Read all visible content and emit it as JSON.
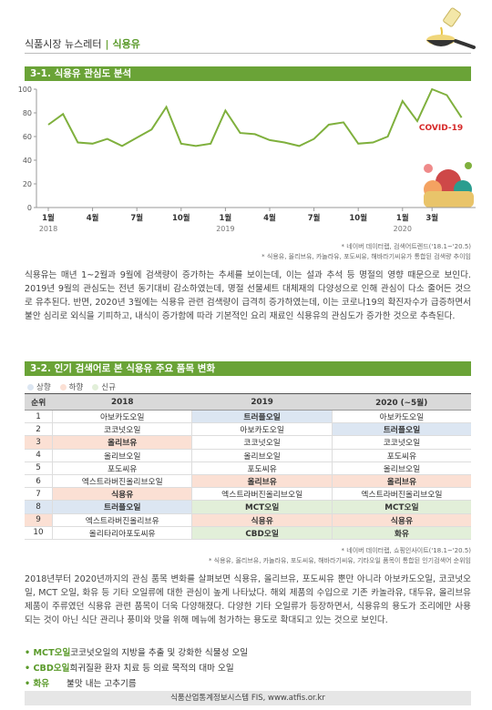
{
  "header": {
    "newsletter": "식품시장 뉴스레터",
    "separator": "|",
    "topic": "식용유"
  },
  "section1": {
    "title": "3-1. 식용유 관심도 분석",
    "chart_data": {
      "type": "line",
      "categories": [
        "1월",
        null,
        null,
        "4월",
        null,
        null,
        "7월",
        null,
        null,
        "10월",
        null,
        null,
        "1월",
        null,
        null,
        "4월",
        null,
        null,
        "7월",
        null,
        null,
        "10월",
        null,
        null,
        "1월",
        null,
        "3월",
        null,
        null
      ],
      "year_labels": [
        "2018",
        null,
        null,
        null,
        null,
        null,
        null,
        null,
        null,
        null,
        null,
        null,
        "2019",
        null,
        null,
        null,
        null,
        null,
        null,
        null,
        null,
        null,
        null,
        null,
        "2020",
        null,
        null,
        null,
        null
      ],
      "values": [
        70,
        79,
        55,
        54,
        58,
        52,
        59,
        66,
        85,
        54,
        52,
        54,
        82,
        63,
        62,
        57,
        55,
        52,
        58,
        70,
        72,
        54,
        55,
        60,
        90,
        73,
        100,
        95,
        76
      ],
      "color": "#7fb03d",
      "ylim": [
        0,
        100
      ],
      "yticks": [
        0,
        20,
        40,
        60,
        80,
        100
      ],
      "grid": false,
      "annotation": "COVID-19"
    },
    "sources": [
      "* 네이버 데이터랩, 검색어트렌드('18.1~'20.5)",
      "* 식용유, 올리브유, 카놀라유, 포도씨유, 해바라기씨유가 통합된 검색량 추이임"
    ],
    "paragraph": "식용유는 매년 1~2월과 9월에 검색량이 증가하는 추세를 보이는데, 이는 설과 추석 등 명절의 영향 때문으로 보인다. 2019년 9월의 관심도는 전년 동기대비 감소하였는데, 명절 선물세트 대체재의 다양성으로 인해 관심이 다소 줄어든 것으로 유추된다. 반면, 2020년 3월에는 식용유 관련 검색량이 급격히 증가하였는데, 이는 코로나19의 확진자수가 급증하면서 불안 심리로 외식을 기피하고, 내식이 증가함에 따라 기본적인 요리 재료인 식용유의 관심도가 증가한 것으로 추측된다."
  },
  "section2": {
    "title": "3-2. 인기 검색어로 본 식용유 주요 품목 변화",
    "legend": [
      {
        "label": "상향",
        "color": "#dce6f2"
      },
      {
        "label": "하향",
        "color": "#fbe0d4"
      },
      {
        "label": "신규",
        "color": "#e2efd9"
      }
    ],
    "table": {
      "header": [
        "순위",
        "2018",
        "2019",
        "2020 (~5월)"
      ],
      "rows": [
        [
          "1",
          "아보카도오일",
          "트러플오일",
          "아보카도오일"
        ],
        [
          "2",
          "코코넛오일",
          "아보카도오일",
          "트러플오일"
        ],
        [
          "3",
          "올리브유",
          "코코넛오일",
          "코코넛오일"
        ],
        [
          "4",
          "올리브오일",
          "올리브오일",
          "포도씨유"
        ],
        [
          "5",
          "포도씨유",
          "포도씨유",
          "올리브오일"
        ],
        [
          "6",
          "엑스트라버진올리브오일",
          "올리브유",
          "올리브유"
        ],
        [
          "7",
          "식용유",
          "엑스트라버진올리브오일",
          "엑스트라버진올리브오일"
        ],
        [
          "8",
          "트러플오일",
          "MCT오일",
          "MCT오일"
        ],
        [
          "9",
          "엑스트라버진올리브유",
          "식용유",
          "식용유"
        ],
        [
          "10",
          "올리타리아포도씨유",
          "CBD오일",
          "화유"
        ]
      ],
      "highlights": [
        [
          null,
          null,
          "#dce6f2",
          null
        ],
        [
          null,
          null,
          null,
          "#dce6f2"
        ],
        [
          "#fbe0d4",
          "#fbe0d4",
          null,
          null
        ],
        [
          null,
          null,
          null,
          null
        ],
        [
          null,
          null,
          null,
          null
        ],
        [
          null,
          null,
          "#fbe0d4",
          "#fbe0d4"
        ],
        [
          null,
          "#fbe0d4",
          null,
          null
        ],
        [
          "#dce6f2",
          "#dce6f2",
          "#e2efd9",
          "#e2efd9"
        ],
        [
          "#fbe0d4",
          null,
          "#fbe0d4",
          "#fbe0d4"
        ],
        [
          null,
          null,
          "#e2efd9",
          "#e2efd9"
        ]
      ]
    },
    "sources": [
      "* 네이버 데이터랩, 쇼핑인사이트('18.1~'20.5)",
      "* 식용유, 올리브유, 카놀라유, 포도씨유, 해바라기씨유, 기타오일 품목이 통합된 인기검색어 순위임"
    ],
    "paragraph": "2018년부터 2020년까지의 관심 품목 변화를 살펴보면 식용유, 올리브유, 포도씨유 뿐만 아니라 아보카도오일, 코코넛오일, MCT 오일, 화유 등 기타 오일류에 대한 관심이 높게 나타났다. 해외 제품의 수입으로 기존 카놀라유, 대두유, 올리브유 제품이 주류였던 식용유 관련 품목이 더욱 다양해졌다. 다양한 기타 오일류가 등장하면서, 식용유의 용도가 조리에만 사용되는 것이 아닌 식단 관리나 풍미와 맛을 위해 메뉴에 첨가하는 용도로 확대되고 있는 것으로 보인다.",
    "bullets": [
      {
        "term": "MCT오일",
        "desc": "코코넛오일의 지방을 추출 및 강화한 식물성 오일"
      },
      {
        "term": "CBD오일",
        "desc": "희귀질환 환자 치료 등 의료 목적의 대마 오일"
      },
      {
        "term": "화유",
        "desc": "불맛 내는 고추기름"
      }
    ]
  },
  "footer": "식품산업통계정보시스템 FIS, www.atfis.or.kr"
}
